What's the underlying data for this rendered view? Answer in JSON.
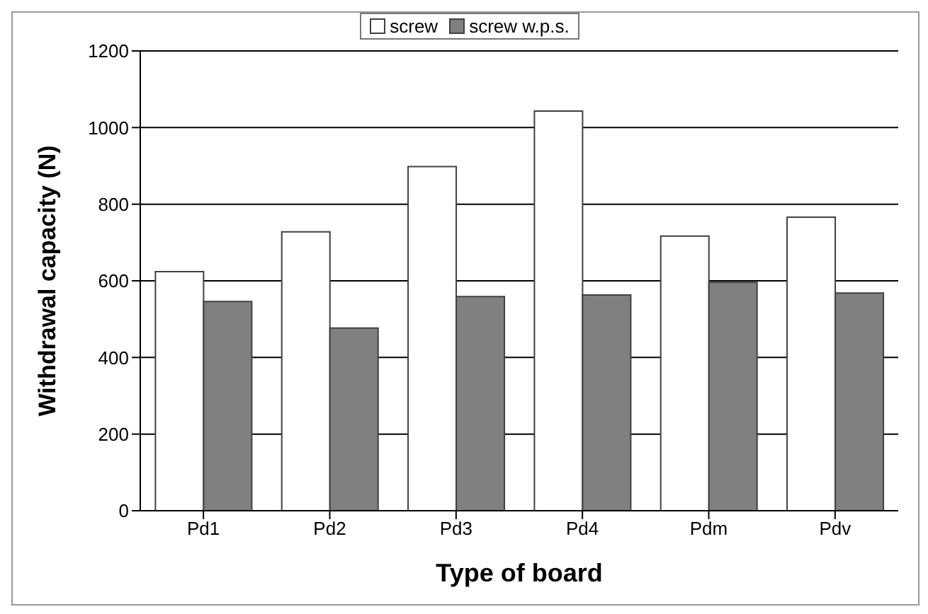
{
  "chart_data": {
    "type": "bar",
    "xlabel": "Type of board",
    "ylabel": "Withdrawal capacity (N)",
    "categories": [
      "Pd1",
      "Pd2",
      "Pd3",
      "Pd4",
      "Pdm",
      "Pdv"
    ],
    "series": [
      {
        "name": "screw",
        "color": "#ffffff",
        "values": [
          624,
          728,
          898,
          1043,
          717,
          766
        ]
      },
      {
        "name": "screw w.p.s.",
        "color": "#808080",
        "values": [
          546,
          477,
          559,
          563,
          596,
          568
        ]
      }
    ],
    "ylim": [
      0,
      1200
    ],
    "yticks": [
      0,
      200,
      400,
      600,
      800,
      1000,
      1200
    ],
    "grid": "y",
    "legend": "top"
  }
}
